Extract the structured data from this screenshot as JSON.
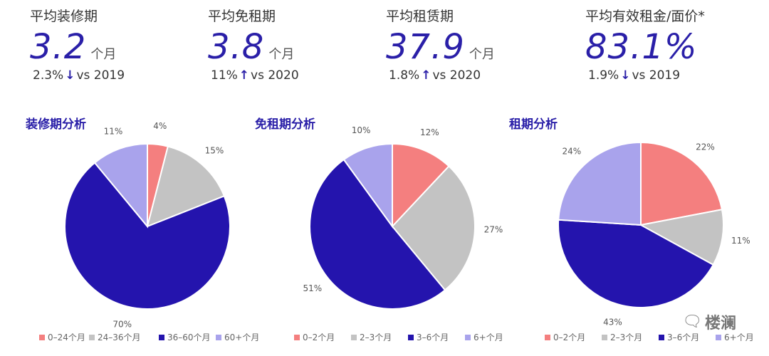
{
  "kpis": [
    {
      "title": "平均装修期",
      "value": "3.2",
      "unit": "个月",
      "change_value": "2.3%",
      "arrow": "↓",
      "change_ref": "vs 2019"
    },
    {
      "title": "平均免租期",
      "value": "3.8",
      "unit": "个月",
      "change_value": "11%",
      "arrow": "↑",
      "change_ref": "vs 2020"
    },
    {
      "title": "平均租赁期",
      "value": "37.9",
      "unit": "个月",
      "change_value": "1.8%",
      "arrow": "↑",
      "change_ref": "vs 2020"
    },
    {
      "title": "平均有效租金/面价*",
      "value": "83.1%",
      "unit": "",
      "change_value": "1.9%",
      "arrow": "↓",
      "change_ref": "vs 2019"
    }
  ],
  "colors": {
    "salmon": "#f47f7f",
    "gray": "#c3c3c3",
    "navy": "#2414ad",
    "lavender": "#a9a3ec",
    "accent": "#2a1fa8"
  },
  "chart_data": [
    {
      "type": "pie",
      "title": "装修期分析",
      "categories": [
        "0–24个月",
        "24–36个月",
        "36–60个月",
        "60+个月"
      ],
      "values": [
        4,
        15,
        70,
        11
      ],
      "labels": [
        "4%",
        "15%",
        "70%",
        "11%"
      ],
      "legend": "bottom"
    },
    {
      "type": "pie",
      "title": "免租期分析",
      "categories": [
        "0–2个月",
        "2–3个月",
        "3–6个月",
        "6+个月"
      ],
      "values": [
        12,
        27,
        51,
        10
      ],
      "labels": [
        "12%",
        "27%",
        "51%",
        "10%"
      ],
      "legend": "bottom"
    },
    {
      "type": "pie",
      "title": "租期分析",
      "categories": [
        "0–2个月",
        "2–3个月",
        "3–6个月",
        "6+个月"
      ],
      "values": [
        22,
        11,
        43,
        24
      ],
      "labels": [
        "22%",
        "11%",
        "43%",
        "24%"
      ],
      "legend": "bottom"
    }
  ],
  "watermark": {
    "text": "楼澜",
    "icon": "wechat-icon"
  }
}
